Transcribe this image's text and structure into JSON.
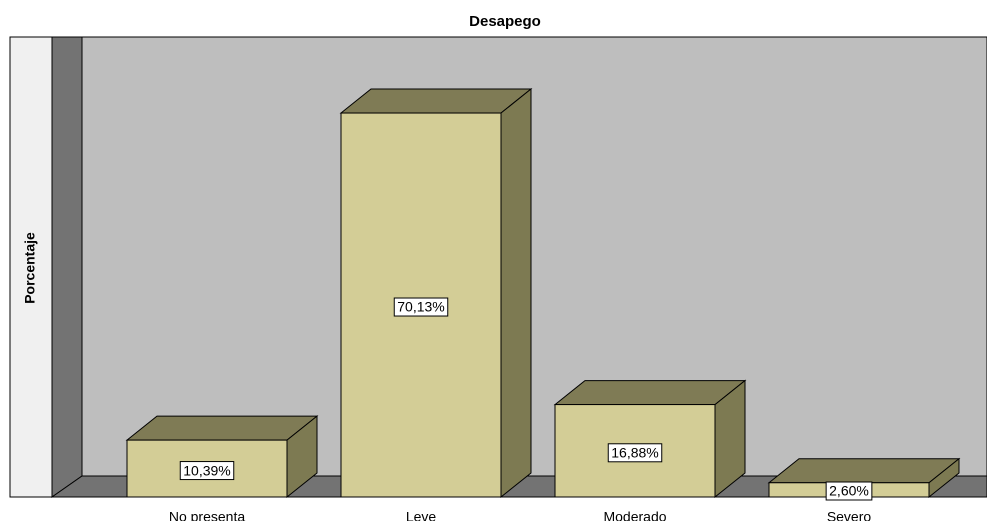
{
  "chart_data": {
    "type": "bar3d",
    "title": "Desapego",
    "y_label": "Porcentaje",
    "categories": [
      "No presenta",
      "Leve",
      "Moderado",
      "Severo"
    ],
    "values": [
      10.39,
      70.13,
      16.88,
      2.6
    ],
    "value_labels": [
      "10,39%",
      "70,13%",
      "16,88%",
      "2,60%"
    ],
    "color": "#d3cd96",
    "ylim": [
      0,
      80
    ]
  }
}
